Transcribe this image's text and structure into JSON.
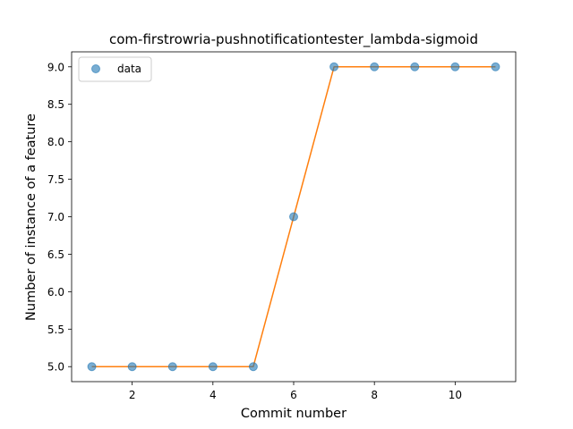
{
  "chart_data": {
    "type": "line",
    "title": "com-firstrowria-pushnotificationtester_lambda-sigmoid",
    "xlabel": "Commit number",
    "ylabel": "Number of instance of a feature",
    "xlim": [
      0.5,
      11.5
    ],
    "ylim": [
      4.8,
      9.2
    ],
    "x_ticks": [
      2,
      4,
      6,
      8,
      10
    ],
    "x_tick_labels": [
      "2",
      "4",
      "6",
      "8",
      "10"
    ],
    "y_ticks": [
      5.0,
      5.5,
      6.0,
      6.5,
      7.0,
      7.5,
      8.0,
      8.5,
      9.0
    ],
    "y_tick_labels": [
      "5.0",
      "5.5",
      "6.0",
      "6.5",
      "7.0",
      "7.5",
      "8.0",
      "8.5",
      "9.0"
    ],
    "grid": false,
    "legend_position": "top-left",
    "series": [
      {
        "name": "data",
        "kind": "scatter",
        "color": "#1f77b4",
        "x": [
          1,
          2,
          3,
          4,
          5,
          6,
          7,
          8,
          9,
          10,
          11
        ],
        "y": [
          5,
          5,
          5,
          5,
          5,
          7,
          9,
          9,
          9,
          9,
          9
        ]
      },
      {
        "kind": "line",
        "color": "#ff7f0e",
        "x": [
          1,
          2,
          3,
          4,
          5,
          6,
          7,
          8,
          9,
          10,
          11
        ],
        "y": [
          5,
          5,
          5,
          5,
          5,
          7,
          9,
          9,
          9,
          9,
          9
        ]
      }
    ]
  }
}
